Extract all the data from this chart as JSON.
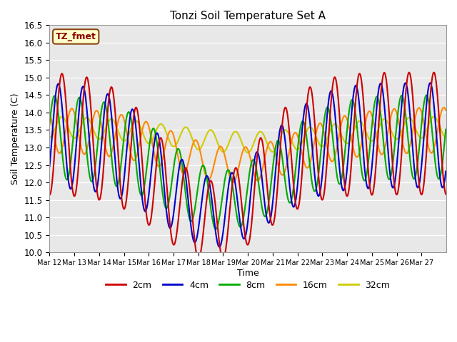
{
  "title": "Tonzi Soil Temperature Set A",
  "xlabel": "Time",
  "ylabel": "Soil Temperature (C)",
  "ylim": [
    10.0,
    16.5
  ],
  "yticks": [
    10.0,
    10.5,
    11.0,
    11.5,
    12.0,
    12.5,
    13.0,
    13.5,
    14.0,
    14.5,
    15.0,
    15.5,
    16.0,
    16.5
  ],
  "figure_bg": "#ffffff",
  "plot_bg": "#e8e8e8",
  "grid_color": "#ffffff",
  "legend_label": "TZ_fmet",
  "legend_box_facecolor": "#ffffcc",
  "legend_box_edgecolor": "#8b4513",
  "colors": {
    "2cm": "#cc0000",
    "4cm": "#0000cc",
    "8cm": "#00aa00",
    "16cm": "#ff8800",
    "32cm": "#cccc00"
  },
  "line_width": 1.5,
  "x_tick_labels": [
    "Mar 12",
    "Mar 13",
    "Mar 14",
    "Mar 15",
    "Mar 16",
    "Mar 17",
    "Mar 18",
    "Mar 19",
    "Mar 20",
    "Mar 21",
    "Mar 22",
    "Mar 23",
    "Mar 24",
    "Mar 25",
    "Mar 26",
    "Mar 27"
  ],
  "pts_per_day": 48,
  "n_days": 16
}
